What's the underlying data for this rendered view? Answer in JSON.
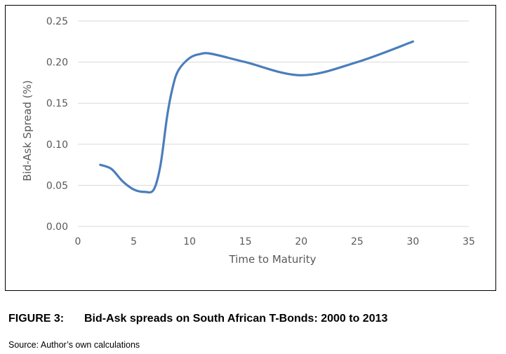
{
  "caption": {
    "figure_number": "FIGURE 3:",
    "title": "Bid-Ask spreads on South African T-Bonds: 2000 to 2013"
  },
  "source_note": "Source: Author’s own calculations",
  "chart_data": {
    "type": "line",
    "xlabel": "Time to Maturity",
    "ylabel": "Bid-Ask Spread (%)",
    "xlim": [
      0,
      35
    ],
    "ylim": [
      0,
      0.25
    ],
    "x_ticks": [
      "0",
      "5",
      "10",
      "15",
      "20",
      "25",
      "30",
      "35"
    ],
    "y_ticks": [
      "0.00",
      "0.05",
      "0.10",
      "0.15",
      "0.20",
      "0.25"
    ],
    "grid": "horizontal",
    "legend": "none",
    "series": [
      {
        "color": "#4a7ebb",
        "x": [
          2,
          3,
          4,
          5,
          6,
          6.8,
          7.4,
          8,
          8.5,
          9,
          10,
          11,
          12,
          15,
          20,
          25,
          30
        ],
        "y": [
          0.075,
          0.07,
          0.055,
          0.045,
          0.042,
          0.045,
          0.075,
          0.135,
          0.17,
          0.19,
          0.205,
          0.21,
          0.21,
          0.2,
          0.184,
          0.2,
          0.225
        ]
      }
    ]
  }
}
